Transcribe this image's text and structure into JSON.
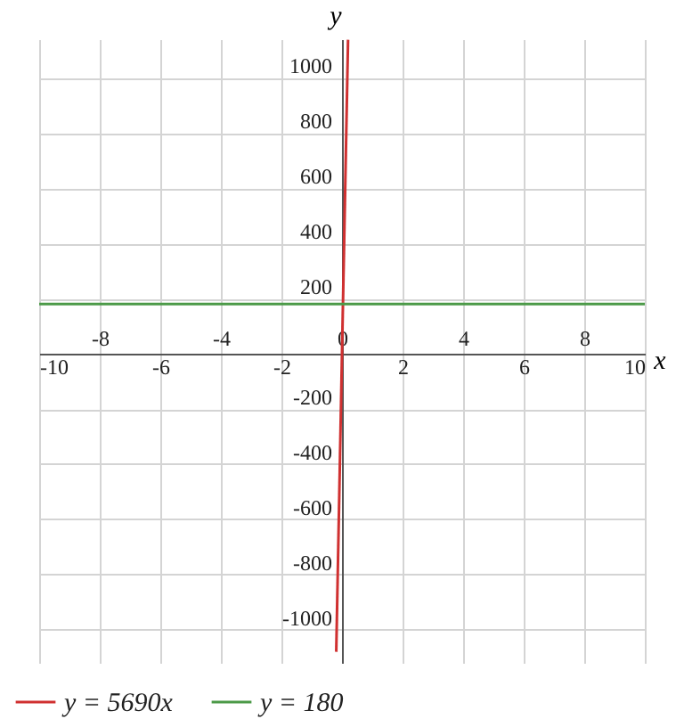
{
  "chart_data": {
    "type": "line",
    "xlabel": "x",
    "ylabel": "y",
    "xlim": [
      -10,
      10
    ],
    "ylim": [
      -1120,
      1140
    ],
    "xticks": [
      -10,
      -6,
      -2,
      2,
      6,
      10
    ],
    "x2lim": [
      -10,
      10
    ],
    "x2ticks": [
      -8,
      -4,
      0,
      4,
      8
    ],
    "yticks": [
      -1000,
      -800,
      -600,
      -400,
      -200,
      200,
      400,
      600,
      800,
      1000
    ],
    "grid": true,
    "legend": "bottom",
    "series": [
      {
        "name": "y = 5690x",
        "color": "#d03030",
        "x": [
          -0.19,
          0.2
        ],
        "values": [
          -1080,
          1138
        ]
      },
      {
        "name": "y = 180",
        "color": "#4c9a48",
        "x": [
          -10,
          10
        ],
        "values": [
          180,
          180
        ]
      }
    ]
  }
}
